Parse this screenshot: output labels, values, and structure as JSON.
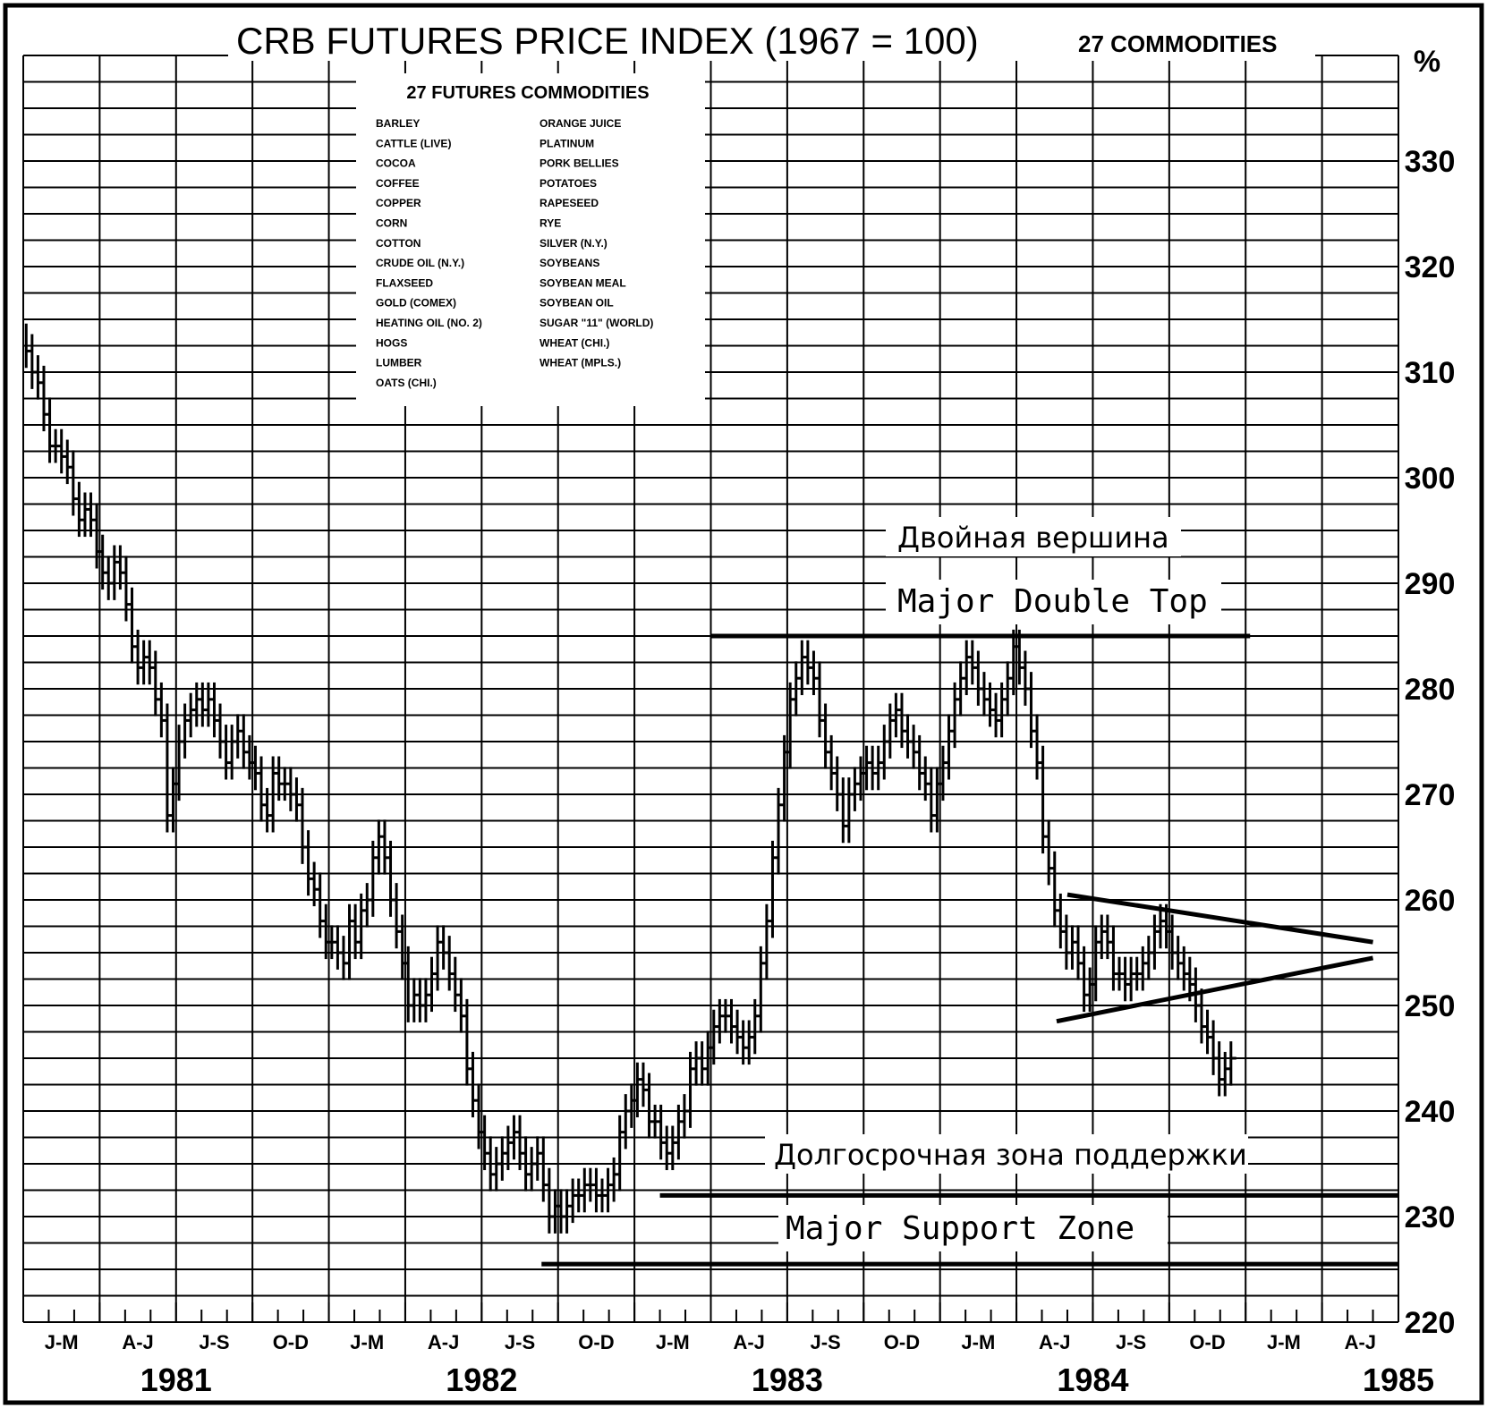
{
  "chart_data": {
    "type": "bar",
    "title": "CRB FUTURES PRICE INDEX (1967 = 100)",
    "subtitle": "27 COMMODITIES",
    "ylabel": "%",
    "ylim": [
      220,
      340
    ],
    "yticks": [
      220,
      230,
      240,
      250,
      260,
      270,
      280,
      290,
      300,
      310,
      320,
      330
    ],
    "quarter_labels": [
      "J-M",
      "A-J",
      "J-S",
      "O-D",
      "J-M",
      "A-J",
      "J-S",
      "O-D",
      "J-M",
      "A-J",
      "J-S",
      "O-D",
      "J-M",
      "A-J",
      "J-S",
      "O-D",
      "J-M",
      "A-J"
    ],
    "years": [
      "1981",
      "1982",
      "1983",
      "1984",
      "1985"
    ],
    "legend_title": "27 FUTURES COMMODITIES",
    "legend_col1": [
      "BARLEY",
      "CATTLE (LIVE)",
      "COCOA",
      "COFFEE",
      "COPPER",
      "CORN",
      "COTTON",
      "CRUDE OIL (N.Y.)",
      "FLAXSEED",
      "GOLD (COMEX)",
      "HEATING OIL (NO. 2)",
      "HOGS",
      "LUMBER",
      "OATS (CHI.)"
    ],
    "legend_col2": [
      "ORANGE JUICE",
      "PLATINUM",
      "PORK BELLIES",
      "POTATOES",
      "RAPESEED",
      "RYE",
      "SILVER (N.Y.)",
      "SOYBEANS",
      "SOYBEAN MEAL",
      "SOYBEAN OIL",
      "SUGAR \"11\" (WORLD)",
      "WHEAT (CHI.)",
      "WHEAT (MPLS.)"
    ],
    "annotations": {
      "double_top_ru": "Двойная вершина",
      "double_top_en": "Major Double Top",
      "support_ru": "Долгосрочная зона поддержки",
      "support_en": "Major Support Zone"
    },
    "levels": {
      "double_top": 285,
      "support_upper": 232,
      "support_lower": 225.5
    },
    "triangle": {
      "upper": {
        "from": [
          "1984-06",
          260.5
        ],
        "to": [
          "1985-06",
          256
        ]
      },
      "lower": {
        "from": [
          "1984-06",
          248.5
        ],
        "to": [
          "1985-06",
          254.5
        ]
      }
    },
    "series": [
      {
        "weeks_from": "1981-01",
        "weekly_close": [
          312,
          310,
          309,
          306,
          303,
          303,
          302,
          301,
          298,
          296,
          297,
          296,
          293,
          291,
          290,
          292,
          291,
          288,
          284,
          282,
          283,
          282,
          279,
          277,
          268,
          271,
          275,
          277,
          278,
          279,
          278,
          279,
          277,
          275,
          273,
          275,
          276,
          274,
          273,
          272,
          269,
          268,
          272,
          271,
          271,
          270,
          269,
          265,
          262,
          261,
          258,
          256,
          256,
          255,
          254,
          258,
          256,
          259,
          260,
          264,
          266,
          264,
          260,
          257,
          254,
          250,
          251,
          250,
          251,
          253,
          256,
          255,
          253,
          251,
          249,
          244,
          241,
          238,
          236,
          234,
          235,
          236,
          237,
          238,
          236,
          234,
          235,
          236,
          233,
          230,
          231,
          230,
          231,
          232,
          232,
          233,
          233,
          232,
          232,
          233,
          234,
          238,
          240,
          241,
          243,
          242,
          239,
          239,
          237,
          236,
          237,
          239,
          240,
          244,
          245,
          244,
          246,
          248,
          249,
          249,
          248,
          247,
          246,
          247,
          249,
          254,
          258,
          264,
          269,
          274,
          279,
          281,
          283,
          282,
          281,
          277,
          274,
          272,
          270,
          267,
          270,
          271,
          272,
          273,
          272,
          273,
          275,
          277,
          278,
          276,
          275,
          274,
          272,
          271,
          268,
          271,
          273,
          276,
          279,
          281,
          283,
          282,
          280,
          279,
          278,
          277,
          279,
          281,
          284,
          282,
          280,
          276,
          273,
          266,
          263,
          259,
          257,
          255,
          256,
          254,
          251,
          252,
          256,
          257,
          256,
          253,
          253,
          252,
          253,
          253,
          254,
          255,
          257,
          258,
          257,
          255,
          254,
          253,
          252,
          250,
          248,
          247,
          245,
          243,
          244,
          245
        ]
      }
    ]
  }
}
